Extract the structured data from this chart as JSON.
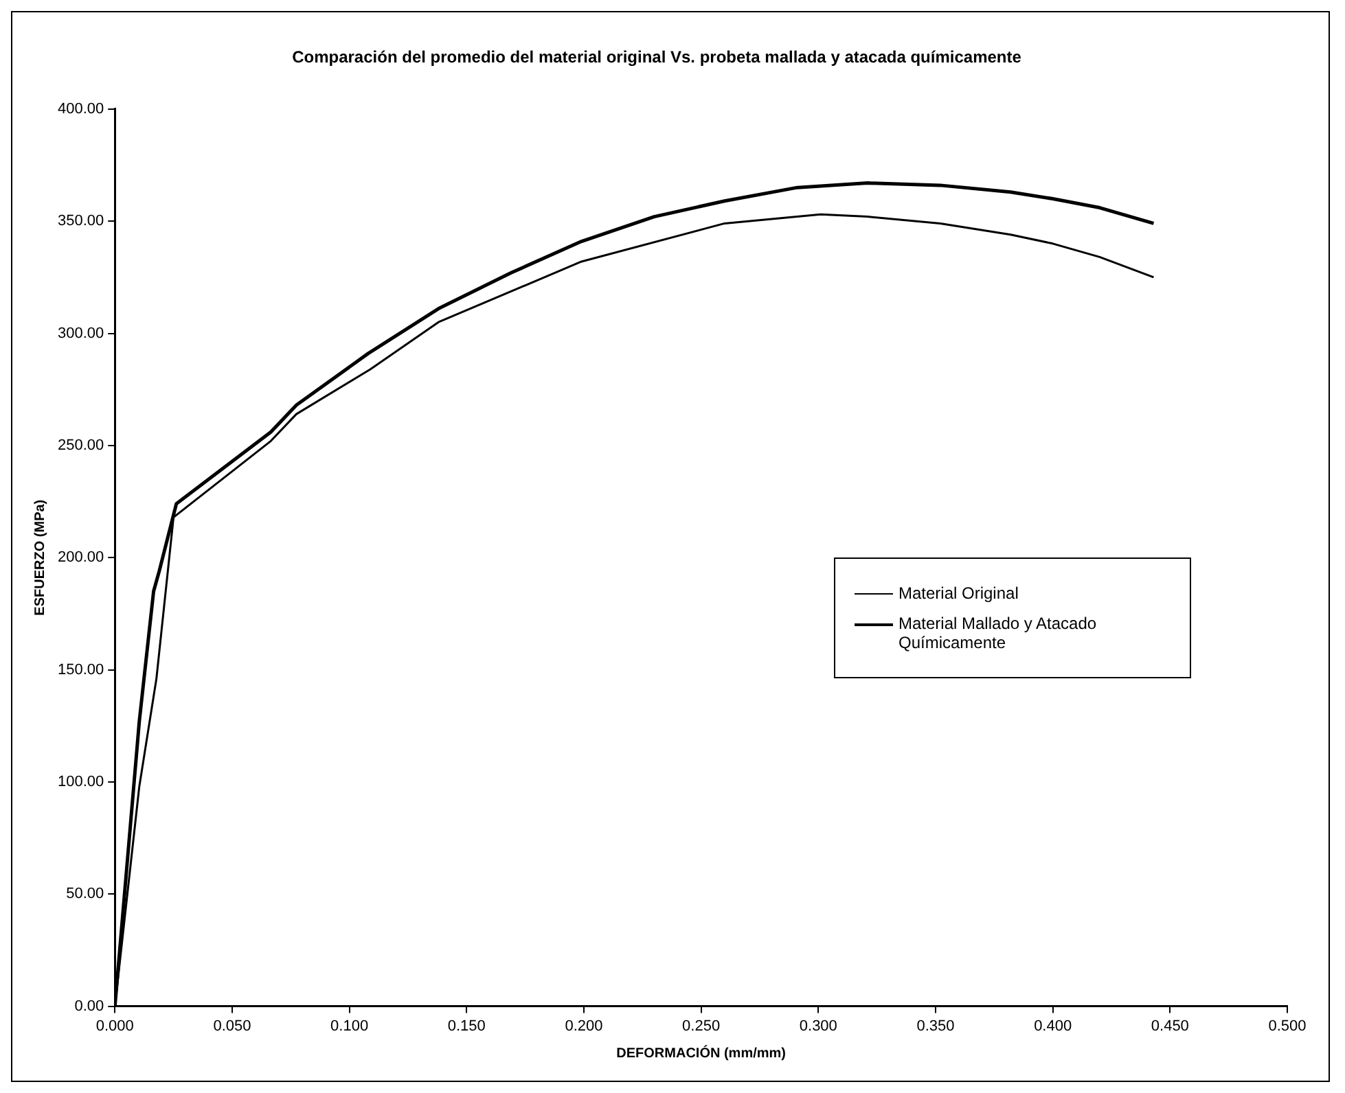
{
  "chart_data": {
    "type": "line",
    "title": "Comparación del promedio del material original Vs. probeta mallada y atacada químicamente",
    "xlabel": "DEFORMACIÓN (mm/mm)",
    "ylabel": "ESFUERZO (MPa)",
    "xlim": [
      0,
      0.5
    ],
    "xticks": [
      {
        "value": 0,
        "label": "0.000"
      },
      {
        "value": 0.05,
        "label": "0.050"
      },
      {
        "value": 0.1,
        "label": "0.100"
      },
      {
        "value": 0.15,
        "label": "0.150"
      },
      {
        "value": 0.2,
        "label": "0.200"
      },
      {
        "value": 0.25,
        "label": "0.250"
      },
      {
        "value": 0.3,
        "label": "0.300"
      },
      {
        "value": 0.35,
        "label": "0.350"
      },
      {
        "value": 0.4,
        "label": "0.400"
      },
      {
        "value": 0.45,
        "label": "0.450"
      },
      {
        "value": 0.5,
        "label": "0.500"
      }
    ],
    "ylim": [
      0,
      400
    ],
    "yticks": [
      {
        "value": 0,
        "label": "0.00"
      },
      {
        "value": 50,
        "label": "50.00"
      },
      {
        "value": 100,
        "label": "100.00"
      },
      {
        "value": 150,
        "label": "150.00"
      },
      {
        "value": 200,
        "label": "200.00"
      },
      {
        "value": 250,
        "label": "250.00"
      },
      {
        "value": 300,
        "label": "300.00"
      },
      {
        "value": 350,
        "label": "350.00"
      },
      {
        "value": 400,
        "label": "400.00"
      }
    ],
    "grid": false,
    "legend": "right",
    "marker": "none",
    "line_style": "solid",
    "series": [
      {
        "name": "Material Original",
        "color": "#000000",
        "x": [
          0,
          0.0104,
          0.0177,
          0.025,
          0.0665,
          0.0774,
          0.109,
          0.138,
          0.199,
          0.26,
          0.301,
          0.321,
          0.352,
          0.382,
          0.4,
          0.42,
          0.443
        ],
        "values": [
          0,
          98,
          146,
          218,
          252,
          264,
          284,
          305,
          332,
          349,
          353,
          352,
          349,
          344,
          340,
          334,
          325
        ]
      },
      {
        "name": "Material Mallado y Atacado Químicamente",
        "color": "#000000",
        "x": [
          0,
          0.0104,
          0.0165,
          0.0189,
          0.0262,
          0.0665,
          0.0774,
          0.108,
          0.138,
          0.169,
          0.199,
          0.23,
          0.26,
          0.291,
          0.321,
          0.352,
          0.382,
          0.4,
          0.42,
          0.443
        ],
        "values": [
          0,
          127,
          185,
          194,
          224,
          256,
          268,
          291,
          311,
          327,
          341,
          352,
          359,
          365,
          367,
          366,
          363,
          360,
          356,
          349
        ]
      }
    ]
  }
}
